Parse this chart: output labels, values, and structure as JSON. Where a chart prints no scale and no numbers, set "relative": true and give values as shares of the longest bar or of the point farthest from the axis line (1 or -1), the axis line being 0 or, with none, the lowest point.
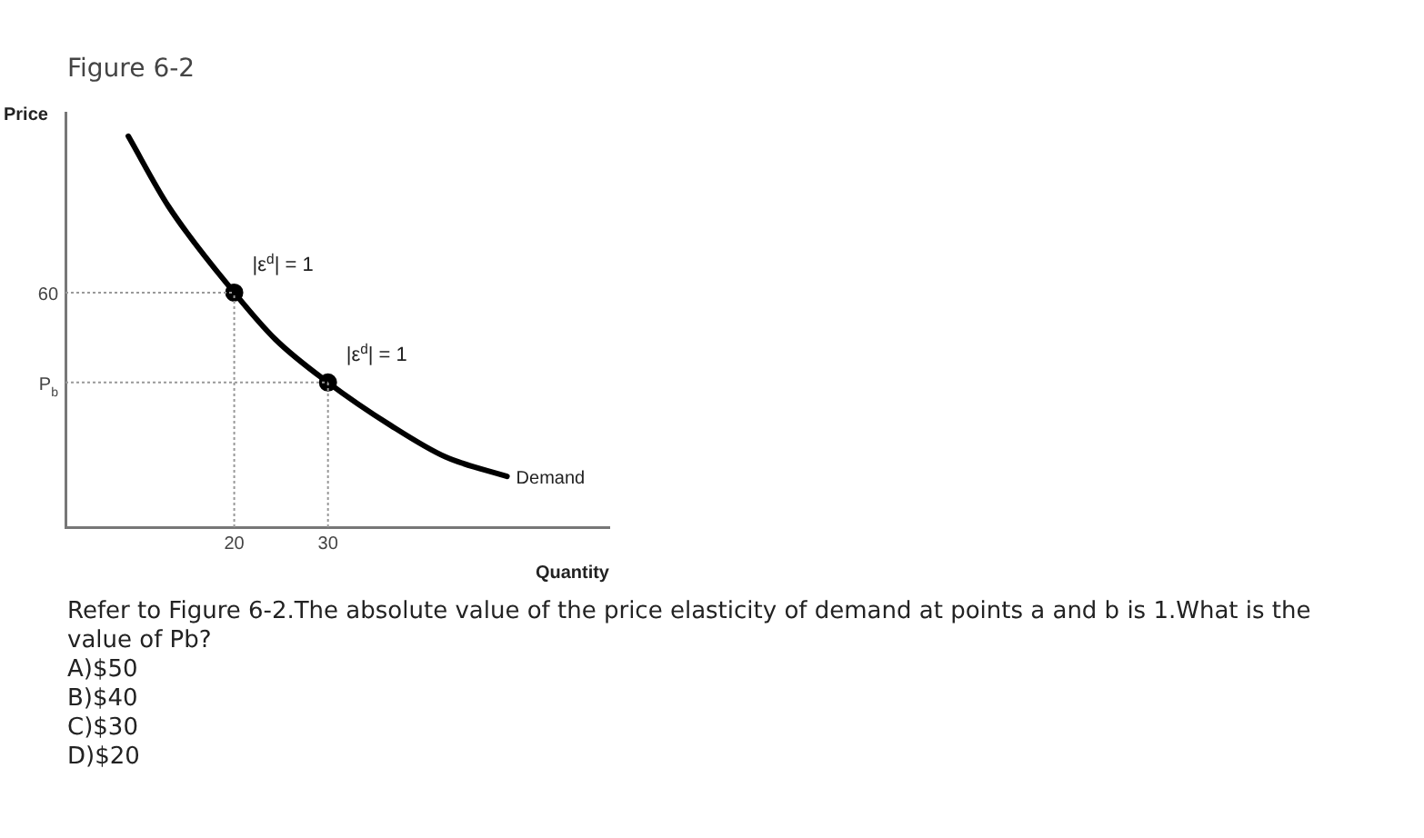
{
  "chart_data": {
    "type": "line",
    "title": "Figure 6-2",
    "xlabel": "Quantity",
    "ylabel": "Price",
    "x": [
      8.7,
      13,
      20,
      24.4,
      30,
      36.7,
      42.5,
      49.1
    ],
    "xlim": [
      2,
      60
    ],
    "xticks": [
      20,
      30
    ],
    "relative": true,
    "ref_lines": [
      {
        "axis": "y",
        "value": 0.6,
        "label": "60",
        "color": "#999999",
        "line_style": "dotted"
      },
      {
        "axis": "y",
        "value": 0.37,
        "label": "P$_{b}$",
        "color": "#999999",
        "line_style": "dotted"
      },
      {
        "axis": "x",
        "value": 20,
        "color": "#999999",
        "line_style": "dotted"
      },
      {
        "axis": "x",
        "value": 30,
        "color": "#999999",
        "line_style": "dotted"
      }
    ],
    "grid": false,
    "legend": false,
    "line_style": "solid",
    "series": [
      {
        "name": "Demand",
        "color": "#000000",
        "values": [
          1,
          0.82,
          0.6,
          0.48,
          0.37,
          0.26,
          0.18,
          0.13
        ],
        "marker": "none"
      },
      {
        "type": "scatter",
        "color": "#000000",
        "x": [
          20,
          30
        ],
        "values": [
          0.6,
          0.37
        ],
        "marker": "circle"
      }
    ],
    "annotations": [
      {
        "text": "|ε$^{d}$| = 1",
        "x": 20,
        "y": 0.6
      },
      {
        "text": "|ε$^{d}$| = 1",
        "x": 30,
        "y": 0.37
      },
      "Refer to Figure 6-2.The absolute value of the price elasticity of demand at points a and b is 1.What is the value of Pb?",
      "A)$50",
      "B)$40",
      "C)$30",
      "D)$20"
    ]
  }
}
